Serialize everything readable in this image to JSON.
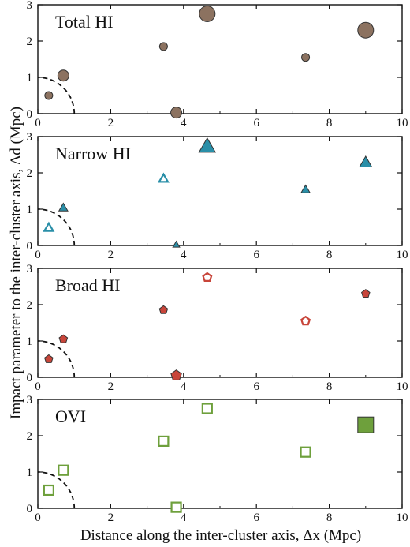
{
  "figure": {
    "xlabel": "Distance along the inter-cluster axis, Δx (Mpc)",
    "ylabel": "Impact parameter to the inter-cluster axis, Δd (Mpc)"
  },
  "chart_data": [
    {
      "type": "scatter",
      "title": "Total HI",
      "xlim": [
        0,
        10
      ],
      "ylim": [
        0,
        3
      ],
      "xticks": [
        "0",
        "2",
        "4",
        "6",
        "8",
        "10"
      ],
      "yticks": [
        "0",
        "1",
        "2",
        "3"
      ],
      "marker": "circle",
      "marker_color": "#8c7260",
      "reference_curve": {
        "type": "quarter-circle",
        "radius": 1,
        "style": "dashed"
      },
      "points": [
        {
          "x": 0.3,
          "y": 0.5,
          "filled": true,
          "size": "small"
        },
        {
          "x": 0.7,
          "y": 1.05,
          "filled": true,
          "size": "medium"
        },
        {
          "x": 3.45,
          "y": 1.85,
          "filled": true,
          "size": "small"
        },
        {
          "x": 3.8,
          "y": 0.03,
          "filled": true,
          "size": "medium"
        },
        {
          "x": 4.65,
          "y": 2.75,
          "filled": true,
          "size": "large"
        },
        {
          "x": 7.35,
          "y": 1.55,
          "filled": true,
          "size": "small"
        },
        {
          "x": 9.0,
          "y": 2.3,
          "filled": true,
          "size": "large"
        }
      ]
    },
    {
      "type": "scatter",
      "title": "Narrow HI",
      "xlim": [
        0,
        10
      ],
      "ylim": [
        0,
        3
      ],
      "xticks": [
        "0",
        "2",
        "4",
        "6",
        "8",
        "10"
      ],
      "yticks": [
        "0",
        "1",
        "2",
        "3"
      ],
      "marker": "triangle",
      "marker_color": "#2a8fa8",
      "reference_curve": {
        "type": "quarter-circle",
        "radius": 1,
        "style": "dashed"
      },
      "points": [
        {
          "x": 0.3,
          "y": 0.5,
          "filled": false,
          "size": "small"
        },
        {
          "x": 0.7,
          "y": 1.05,
          "filled": true,
          "size": "small"
        },
        {
          "x": 3.45,
          "y": 1.85,
          "filled": false,
          "size": "small"
        },
        {
          "x": 3.8,
          "y": 0.03,
          "filled": true,
          "size": "tiny"
        },
        {
          "x": 4.65,
          "y": 2.75,
          "filled": true,
          "size": "large"
        },
        {
          "x": 7.35,
          "y": 1.55,
          "filled": true,
          "size": "small"
        },
        {
          "x": 9.0,
          "y": 2.3,
          "filled": true,
          "size": "medium"
        }
      ]
    },
    {
      "type": "scatter",
      "title": "Broad HI",
      "xlim": [
        0,
        10
      ],
      "ylim": [
        0,
        3
      ],
      "xticks": [
        "0",
        "2",
        "4",
        "6",
        "8",
        "10"
      ],
      "yticks": [
        "0",
        "1",
        "2",
        "3"
      ],
      "marker": "pentagon",
      "marker_color": "#c8453a",
      "reference_curve": {
        "type": "quarter-circle",
        "radius": 1,
        "style": "dashed"
      },
      "points": [
        {
          "x": 0.3,
          "y": 0.5,
          "filled": true,
          "size": "small"
        },
        {
          "x": 0.7,
          "y": 1.05,
          "filled": true,
          "size": "small"
        },
        {
          "x": 3.45,
          "y": 1.85,
          "filled": true,
          "size": "small"
        },
        {
          "x": 3.8,
          "y": 0.05,
          "filled": true,
          "size": "medium"
        },
        {
          "x": 4.65,
          "y": 2.75,
          "filled": false,
          "size": "small"
        },
        {
          "x": 7.35,
          "y": 1.55,
          "filled": false,
          "size": "small"
        },
        {
          "x": 9.0,
          "y": 2.3,
          "filled": true,
          "size": "small"
        }
      ]
    },
    {
      "type": "scatter",
      "title": "OVI",
      "xlim": [
        0,
        10
      ],
      "ylim": [
        0,
        3
      ],
      "xticks": [
        "0",
        "2",
        "4",
        "6",
        "8",
        "10"
      ],
      "yticks": [
        "0",
        "1",
        "2",
        "3"
      ],
      "marker": "square",
      "marker_color": "#6ea03c",
      "reference_curve": {
        "type": "quarter-circle",
        "radius": 1,
        "style": "dashed"
      },
      "points": [
        {
          "x": 0.3,
          "y": 0.5,
          "filled": false,
          "size": "small"
        },
        {
          "x": 0.7,
          "y": 1.05,
          "filled": false,
          "size": "small"
        },
        {
          "x": 3.45,
          "y": 1.85,
          "filled": false,
          "size": "small"
        },
        {
          "x": 3.8,
          "y": 0.03,
          "filled": false,
          "size": "small"
        },
        {
          "x": 4.65,
          "y": 2.75,
          "filled": false,
          "size": "small"
        },
        {
          "x": 7.35,
          "y": 1.55,
          "filled": false,
          "size": "small"
        },
        {
          "x": 9.0,
          "y": 2.3,
          "filled": true,
          "size": "large"
        }
      ]
    }
  ]
}
